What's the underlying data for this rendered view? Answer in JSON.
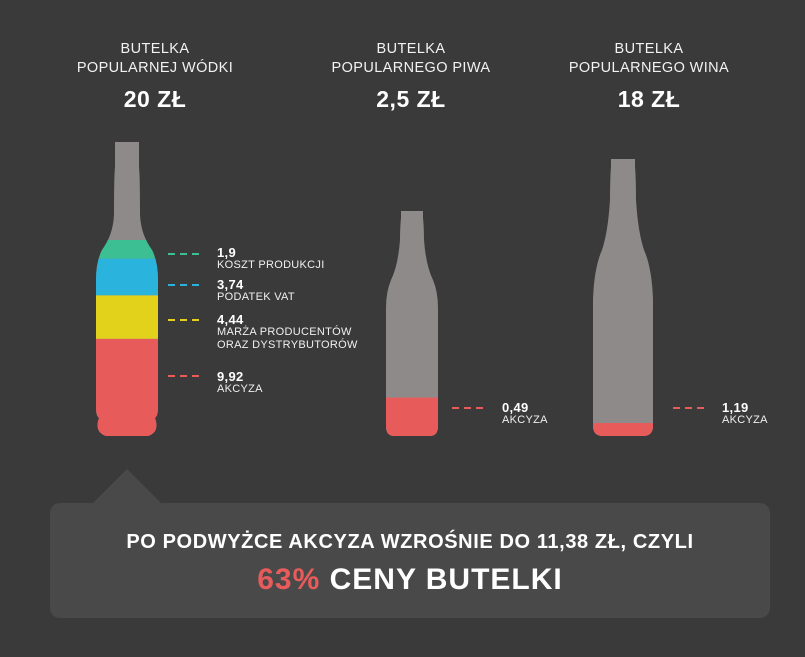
{
  "chart_data": {
    "type": "bar",
    "bottles": [
      {
        "id": "vodka",
        "title_line1": "BUTELKA",
        "title_line2": "POPULARNEJ WÓDKI",
        "price": "20 ZŁ",
        "price_value": 20,
        "segments": [
          {
            "value": 9.92,
            "value_label": "9,92",
            "label": "AKCYZA",
            "color": "#e85b5b"
          },
          {
            "value": 4.44,
            "value_label": "4,44",
            "label": "MARŻA PRODUCENTÓW",
            "label2": "ORAZ DYSTRYBUTORÓW",
            "color": "#e3d21c"
          },
          {
            "value": 3.74,
            "value_label": "3,74",
            "label": "PODATEK VAT",
            "color": "#2ab3dd"
          },
          {
            "value": 1.9,
            "value_label": "1,9",
            "label": "KOSZT PRODUKCJI",
            "color": "#3dbf94"
          }
        ]
      },
      {
        "id": "beer",
        "title_line1": "BUTELKA",
        "title_line2": "POPULARNEGO PIWA",
        "price": "2,5 ZŁ",
        "price_value": 2.5,
        "segments": [
          {
            "value": 0.49,
            "value_label": "0,49",
            "label": "AKCYZA",
            "color": "#e85b5b"
          }
        ]
      },
      {
        "id": "wine",
        "title_line1": "BUTELKA",
        "title_line2": "POPULARNEGO WINA",
        "price": "18 ZŁ",
        "price_value": 18,
        "segments": [
          {
            "value": 1.19,
            "value_label": "1,19",
            "label": "AKCYZA",
            "color": "#e85b5b"
          }
        ]
      }
    ]
  },
  "banner": {
    "line1": "PO PODWYŻCE AKCYZA WZROŚNIE DO 11,38 ZŁ, CZYLI",
    "percent": "63%",
    "line2_rest": " CENY BUTELKI"
  },
  "colors": {
    "background": "#3b3a3b",
    "bottle": "#8f8a8a",
    "banner": "#4a494a",
    "accent": "#e85b5b"
  }
}
